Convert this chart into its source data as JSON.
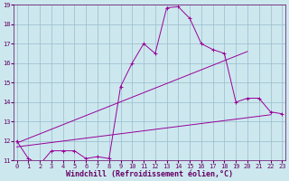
{
  "xlabel": "Windchill (Refroidissement éolien,°C)",
  "x": [
    0,
    1,
    2,
    3,
    4,
    5,
    6,
    7,
    8,
    9,
    10,
    11,
    12,
    13,
    14,
    15,
    16,
    17,
    18,
    19,
    20,
    21,
    22,
    23
  ],
  "main_y": [
    12,
    11.1,
    10.8,
    11.5,
    11.5,
    11.5,
    11.1,
    11.2,
    11.1,
    14.8,
    16.0,
    17.0,
    16.5,
    18.85,
    18.9,
    18.3,
    17.0,
    16.7,
    16.5,
    14.0,
    14.2,
    14.2,
    13.5,
    13.4
  ],
  "trend1_x": [
    0,
    20
  ],
  "trend1_y": [
    11.9,
    16.6
  ],
  "trend2_x": [
    0,
    22
  ],
  "trend2_y": [
    11.7,
    13.35
  ],
  "bg_color": "#cce8ee",
  "grid_color": "#99bbcc",
  "line_color": "#990099",
  "text_color": "#660066",
  "ylim": [
    11,
    19
  ],
  "xlim_min": 0,
  "xlim_max": 23,
  "yticks": [
    11,
    12,
    13,
    14,
    15,
    16,
    17,
    18,
    19
  ],
  "xticks": [
    0,
    1,
    2,
    3,
    4,
    5,
    6,
    7,
    8,
    9,
    10,
    11,
    12,
    13,
    14,
    15,
    16,
    17,
    18,
    19,
    20,
    21,
    22,
    23
  ],
  "xlabel_fontsize": 6.0,
  "tick_fontsize": 5.0
}
